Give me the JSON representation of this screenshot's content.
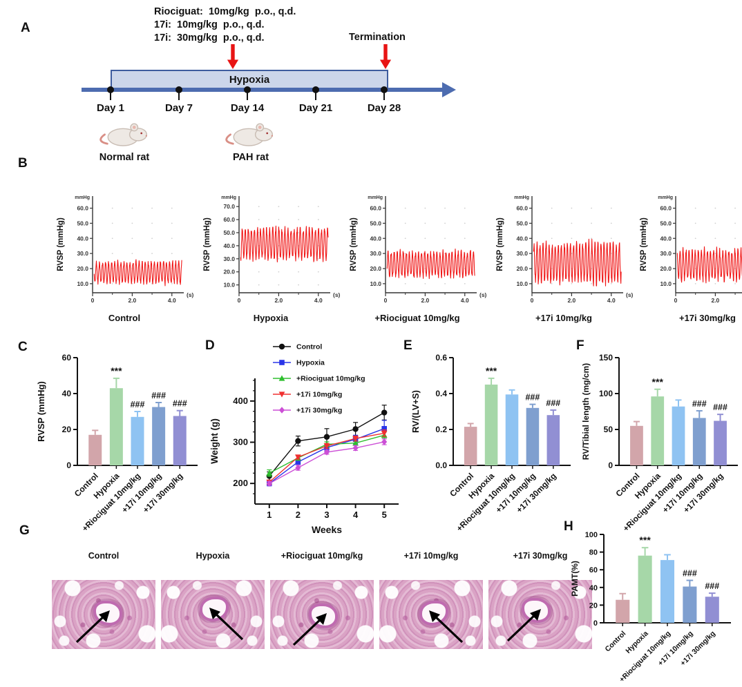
{
  "palette": {
    "bar_colors": [
      "#d2a5aa",
      "#a6d7a8",
      "#8fc3f2",
      "#7f9fcf",
      "#918fd3"
    ],
    "trace_color": "#f01515",
    "arrow_red": "#e81414",
    "timeline_fill": "#ccd6ea",
    "timeline_stroke": "#3e5c9e",
    "timeline_line": "#4d6cb0"
  },
  "categories": [
    "Control",
    "Hypoxia",
    "+Riociguat 10mg/kg",
    "+17i 10mg/kg",
    "+17i 30mg/kg"
  ],
  "panelA": {
    "letter": "A",
    "dose_lines": [
      "Riociguat:  10mg/kg  p.o., q.d.",
      "17i:  10mg/kg  p.o., q.d.",
      "17i:  30mg/kg  p.o., q.d.",
      ""
    ],
    "termination_label": "Termination",
    "hypoxia_label": "Hypoxia",
    "days": [
      "Day 1",
      "Day 7",
      "Day 14",
      "Day 21",
      "Day 28"
    ],
    "rat1_label": "Normal rat",
    "rat2_label": "PAH rat"
  },
  "panelB": {
    "letter": "B",
    "ylabel": "RVSP (mmHg)",
    "yunit_top": "mmHg",
    "xunit": "(s)",
    "xtick_labels": [
      "0",
      "2.0",
      "4.0"
    ],
    "traces": [
      {
        "label": "Control"
      },
      {
        "label": "Hypoxia"
      },
      {
        "label": "+Riociguat 10mg/kg"
      },
      {
        "label": "+17i 10mg/kg"
      },
      {
        "label": "+17i 30mg/kg"
      }
    ]
  },
  "panelC": {
    "letter": "C"
  },
  "panelD": {
    "letter": "D"
  },
  "panelE": {
    "letter": "E"
  },
  "panelF": {
    "letter": "F"
  },
  "panelG": {
    "letter": "G",
    "labels": [
      "Control",
      "Hypoxia",
      "+Riociguat 10mg/kg",
      "+17i 10mg/kg",
      "+17i 30mg/kg"
    ]
  },
  "panelH": {
    "letter": "H"
  },
  "chart_data": [
    {
      "id": "B",
      "type": "trace",
      "title": "RVSP pressure traces",
      "ylabel": "RVSP (mmHg)",
      "yunit": "mmHg",
      "xunit": "(s)",
      "x_range_s": [
        0,
        4.6
      ],
      "xticks": [
        0,
        2,
        4
      ],
      "xtick_labels": [
        "0",
        "2.0",
        "4.0"
      ],
      "traces": [
        {
          "label": "Control",
          "min": 10,
          "max": 25,
          "ymax": 60,
          "yticks": [
            10,
            20,
            30,
            40,
            50,
            60
          ]
        },
        {
          "label": "Hypoxia",
          "min": 29,
          "max": 54,
          "ymax": 70,
          "yticks": [
            10,
            20,
            30,
            40,
            50,
            60,
            70
          ]
        },
        {
          "label": "+Riociguat 10mg/kg",
          "min": 14,
          "max": 32,
          "ymax": 60,
          "yticks": [
            10,
            20,
            30,
            40,
            50,
            60
          ]
        },
        {
          "label": "+17i 10mg/kg",
          "min": 10,
          "max": 38,
          "ymax": 60,
          "yticks": [
            10,
            20,
            30,
            40,
            50,
            60
          ]
        },
        {
          "label": "+17i 30mg/kg",
          "min": 12,
          "max": 33,
          "ymax": 60,
          "yticks": [
            10,
            20,
            30,
            40,
            50,
            60
          ]
        }
      ]
    },
    {
      "id": "C",
      "type": "bar",
      "categories": [
        "Control",
        "Hypoxia",
        "+Riociguat 10mg/kg",
        "+17i 10mg/kg",
        "+17i 30mg/kg"
      ],
      "values": [
        17,
        43,
        27,
        32.5,
        27.5
      ],
      "errors": [
        2.5,
        5.5,
        3,
        2.5,
        3
      ],
      "sig": [
        "",
        "***",
        "###",
        "###",
        "###"
      ],
      "ylabel": "RVSP (mmHg)",
      "ylim": [
        0,
        60
      ],
      "yticks": [
        0,
        20,
        40,
        60
      ],
      "ytick_labels": [
        "0",
        "20",
        "40",
        "60"
      ]
    },
    {
      "id": "D",
      "type": "line",
      "x": [
        1,
        2,
        3,
        4,
        5
      ],
      "xtick_labels": [
        "1",
        "2",
        "3",
        "4",
        "5"
      ],
      "xlabel": "Weeks",
      "ylabel": "Weight (g)",
      "ylim": [
        150,
        455
      ],
      "yticks": [
        200,
        300,
        400
      ],
      "ytick_labels": [
        "200",
        "300",
        "400"
      ],
      "yminor_step": 25,
      "legend_position": "top-left",
      "series": [
        {
          "name": "Control",
          "color": "#111111",
          "marker": "circle",
          "values": [
            218,
            303,
            313,
            332,
            372
          ],
          "errors": [
            10,
            12,
            20,
            16,
            18
          ]
        },
        {
          "name": "Hypoxia",
          "color": "#2a35e8",
          "marker": "square",
          "values": [
            200,
            252,
            287,
            307,
            333
          ],
          "errors": [
            6,
            8,
            8,
            10,
            20
          ]
        },
        {
          "name": "+Riociguat 10mg/kg",
          "color": "#2ebf2e",
          "marker": "triangle-up",
          "values": [
            225,
            262,
            295,
            298,
            317
          ],
          "errors": [
            8,
            6,
            6,
            5,
            8
          ]
        },
        {
          "name": "+17i 10mg/kg",
          "color": "#f03030",
          "marker": "triangle-down",
          "values": [
            203,
            264,
            291,
            309,
            322
          ],
          "errors": [
            5,
            5,
            6,
            6,
            8
          ]
        },
        {
          "name": "+17i 30mg/kg",
          "color": "#cc4fd6",
          "marker": "diamond",
          "values": [
            200,
            238,
            276,
            286,
            301
          ],
          "errors": [
            5,
            6,
            5,
            6,
            7
          ]
        }
      ]
    },
    {
      "id": "E",
      "type": "bar",
      "categories": [
        "Control",
        "Hypoxia",
        "+Riociguat 10mg/kg",
        "+17i 10mg/kg",
        "+17i 30mg/kg"
      ],
      "values": [
        0.215,
        0.45,
        0.395,
        0.32,
        0.28
      ],
      "errors": [
        0.018,
        0.035,
        0.025,
        0.02,
        0.028
      ],
      "sig": [
        "",
        "***",
        "",
        "###",
        "###"
      ],
      "ylabel": "RV/(LV+S)",
      "ylim": [
        0,
        0.6
      ],
      "yticks": [
        0,
        0.2,
        0.4,
        0.6
      ],
      "ytick_labels": [
        "0.0",
        "0.2",
        "0.4",
        "0.6"
      ]
    },
    {
      "id": "F",
      "type": "bar",
      "categories": [
        "Control",
        "Hypoxia",
        "+Riociguat 10mg/kg",
        "+17i 10mg/kg",
        "+17i 30mg/kg"
      ],
      "values": [
        55,
        96,
        82,
        66,
        62
      ],
      "errors": [
        6,
        10,
        9,
        10,
        9
      ],
      "sig": [
        "",
        "***",
        "",
        "###",
        "###"
      ],
      "ylabel": "RV/Tibial length (mg/cm)",
      "ylim": [
        0,
        150
      ],
      "yticks": [
        0,
        50,
        100,
        150
      ],
      "ytick_labels": [
        "0",
        "50",
        "100",
        "150"
      ]
    },
    {
      "id": "H",
      "type": "bar",
      "categories": [
        "Control",
        "Hypoxia",
        "+Riociguat 10mg/kg",
        "+17i 10mg/kg",
        "+17i 30mg/kg"
      ],
      "values": [
        26,
        76,
        71,
        41,
        29.5
      ],
      "errors": [
        7,
        9,
        6,
        7,
        4
      ],
      "sig": [
        "",
        "***",
        "",
        "###",
        "###"
      ],
      "ylabel": "PAMT(%)",
      "ylim": [
        0,
        100
      ],
      "yticks": [
        0,
        20,
        40,
        60,
        80,
        100
      ],
      "ytick_labels": [
        "0",
        "20",
        "40",
        "60",
        "80",
        "100"
      ]
    }
  ]
}
